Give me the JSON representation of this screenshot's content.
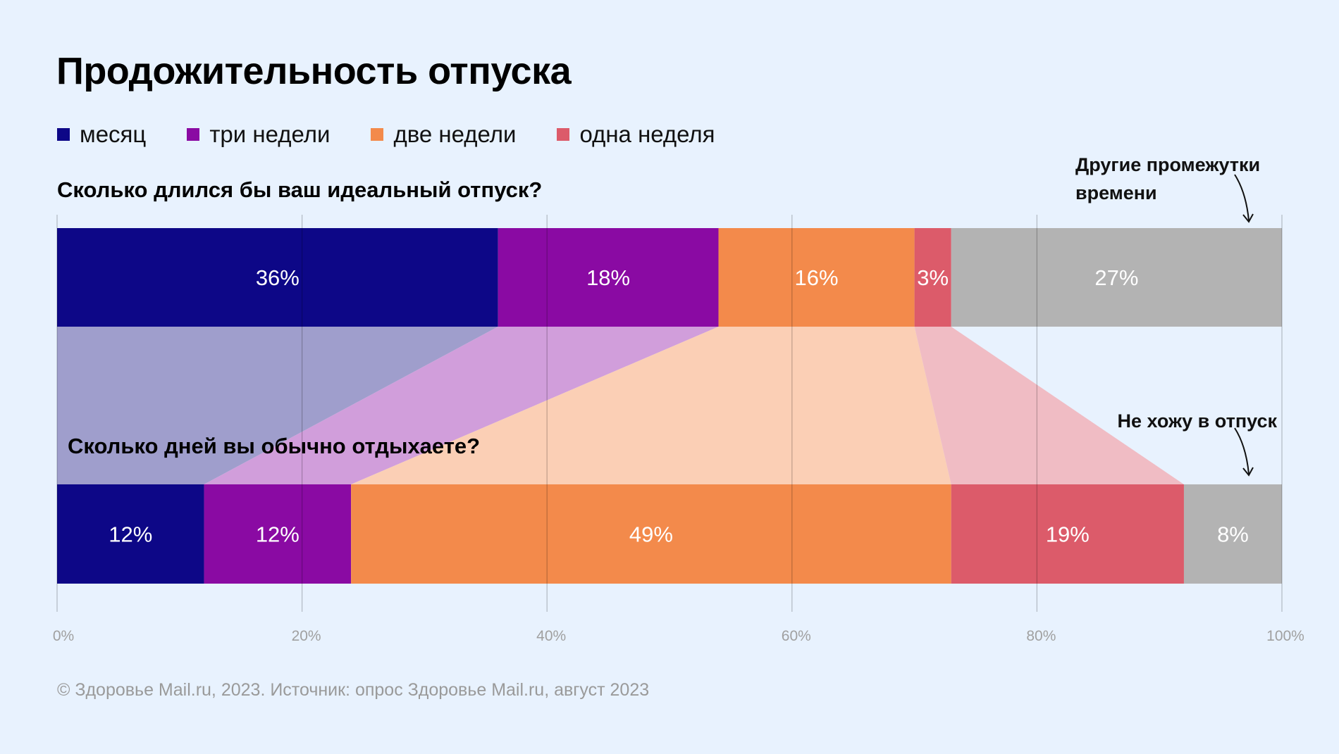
{
  "title": "Продожительность отпуска",
  "legend": [
    {
      "label": "месяц",
      "color": "#0d0787"
    },
    {
      "label": "три недели",
      "color": "#8a0aa3"
    },
    {
      "label": "две недели",
      "color": "#f38a4b"
    },
    {
      "label": "одна неделя",
      "color": "#dc5b6a"
    }
  ],
  "annotations": {
    "other": "Другие промежутки времени",
    "none": "Не хожу в отпуск"
  },
  "footer": "© Здоровье Mail.ru, 2023. Источник: опрос Здоровье Mail.ru, август 2023",
  "chart_data": {
    "type": "bar",
    "orientation": "horizontal-stacked-100",
    "categories": [
      "месяц",
      "три недели",
      "две недели",
      "одна неделя",
      "other"
    ],
    "bars": [
      {
        "question": "Сколько длился бы ваш идеальный отпуск?",
        "values": [
          36,
          18,
          16,
          3,
          27
        ],
        "labels": [
          "36%",
          "18%",
          "16%",
          "3%",
          "27%"
        ]
      },
      {
        "question": "Сколько дней вы обычно отдыхаете?",
        "values": [
          12,
          12,
          49,
          19,
          8
        ],
        "labels": [
          "12%",
          "12%",
          "49%",
          "19%",
          "8%"
        ]
      }
    ],
    "colors": [
      "#0d0787",
      "#8a0aa3",
      "#f38a4b",
      "#dc5b6a",
      "#b3b3b3"
    ],
    "link_colors": [
      "#9f9ecc",
      "#d19edb",
      "#fbcfb5",
      "#f0bcc4"
    ],
    "xticks": [
      "0%",
      "20%",
      "40%",
      "60%",
      "80%",
      "100%"
    ],
    "xlim": [
      0,
      100
    ],
    "grid": true
  }
}
